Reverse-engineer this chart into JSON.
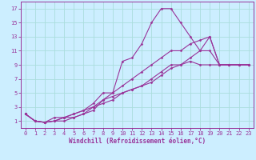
{
  "xlabel": "Windchill (Refroidissement éolien,°C)",
  "background_color": "#cceeff",
  "grid_color": "#aadddd",
  "line_color": "#993399",
  "spine_color": "#993399",
  "xlim": [
    -0.5,
    23.5
  ],
  "ylim": [
    0.0,
    18.0
  ],
  "xticks": [
    0,
    1,
    2,
    3,
    4,
    5,
    6,
    7,
    8,
    9,
    10,
    11,
    12,
    13,
    14,
    15,
    16,
    17,
    18,
    19,
    20,
    21,
    22,
    23
  ],
  "yticks": [
    1,
    3,
    5,
    7,
    9,
    11,
    13,
    15,
    17
  ],
  "tick_fontsize": 5.0,
  "xlabel_fontsize": 5.5,
  "lines": [
    {
      "x": [
        0,
        1,
        2,
        3,
        4,
        5,
        6,
        7,
        8,
        9,
        10,
        11,
        12,
        13,
        14,
        15,
        16,
        17,
        18,
        19,
        20,
        21,
        22,
        23
      ],
      "y": [
        2,
        1,
        0.8,
        1,
        1,
        1.5,
        2,
        2.5,
        4,
        4.5,
        5,
        5.5,
        6,
        6.5,
        7.5,
        8.5,
        9,
        9.5,
        9,
        9,
        9,
        9,
        9,
        9
      ]
    },
    {
      "x": [
        0,
        1,
        2,
        3,
        4,
        5,
        6,
        7,
        8,
        9,
        10,
        11,
        12,
        13,
        14,
        15,
        16,
        17,
        18,
        19,
        20,
        21,
        22,
        23
      ],
      "y": [
        2,
        1,
        0.8,
        1.5,
        1.5,
        2,
        2.5,
        3.5,
        5,
        5,
        9.5,
        10,
        12,
        15,
        17,
        17,
        15,
        13,
        11,
        13,
        9,
        9,
        9,
        9
      ]
    },
    {
      "x": [
        0,
        1,
        2,
        3,
        4,
        5,
        6,
        7,
        8,
        9,
        10,
        11,
        12,
        13,
        14,
        15,
        16,
        17,
        18,
        19,
        20,
        21,
        22,
        23
      ],
      "y": [
        2,
        1,
        0.8,
        1,
        1.5,
        1.5,
        2,
        3,
        3.5,
        4,
        5,
        5.5,
        6,
        7,
        8,
        9,
        9,
        10,
        11,
        11,
        9,
        9,
        9,
        9
      ]
    },
    {
      "x": [
        0,
        1,
        2,
        3,
        4,
        5,
        6,
        7,
        8,
        9,
        10,
        11,
        12,
        13,
        14,
        15,
        16,
        17,
        18,
        19,
        20,
        21,
        22,
        23
      ],
      "y": [
        2,
        1,
        0.8,
        1,
        1.5,
        2,
        2.5,
        3,
        4,
        5,
        6,
        7,
        8,
        9,
        10,
        11,
        11,
        12,
        12.5,
        13,
        9,
        9,
        9,
        9
      ]
    }
  ]
}
